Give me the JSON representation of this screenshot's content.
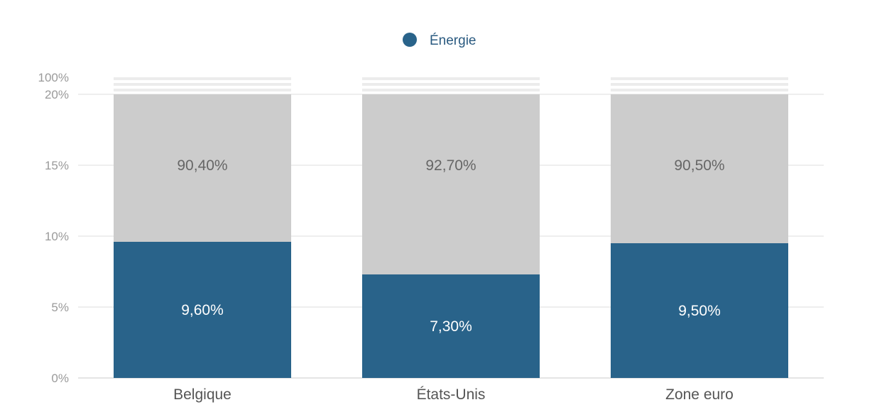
{
  "chart_data": {
    "type": "bar",
    "stacked": true,
    "categories": [
      "Belgique",
      "États-Unis",
      "Zone euro"
    ],
    "series": [
      {
        "name": "Énergie",
        "values": [
          9.6,
          7.3,
          9.5
        ],
        "labels": [
          "9,60%",
          "7,30%",
          "9,50%"
        ],
        "color": "#29638a"
      },
      {
        "values": [
          90.4,
          92.7,
          90.5
        ],
        "labels": [
          "90,40%",
          "92,70%",
          "90,50%"
        ],
        "color": "#cccccc"
      }
    ],
    "y_ticks": [
      {
        "value": 0,
        "label": "0%"
      },
      {
        "value": 5,
        "label": "5%"
      },
      {
        "value": 10,
        "label": "10%"
      },
      {
        "value": 15,
        "label": "15%"
      },
      {
        "value": 20,
        "label": "20%"
      },
      {
        "value": 100,
        "label": "100%"
      }
    ],
    "ylim": [
      0,
      100
    ],
    "axis_break": [
      20,
      100
    ],
    "legend": {
      "position": "top-center",
      "entries": [
        "Énergie"
      ]
    },
    "grid": true
  }
}
